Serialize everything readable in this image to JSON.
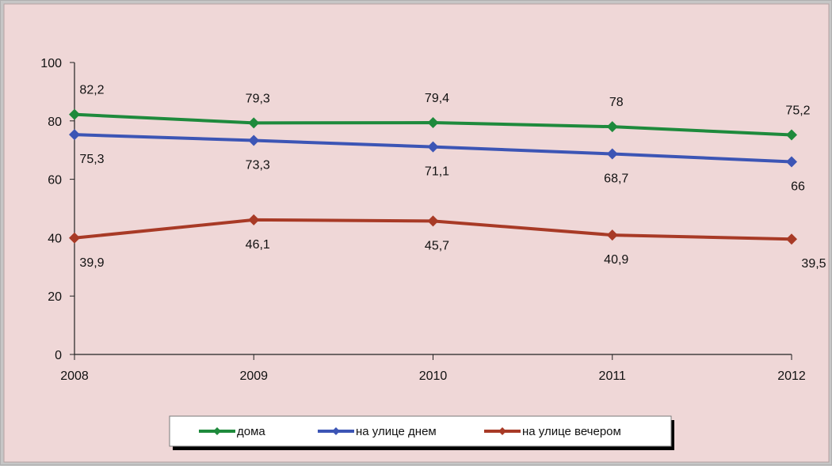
{
  "chart_data": {
    "type": "line",
    "x": [
      2008,
      2009,
      2010,
      2011,
      2012
    ],
    "ylim": [
      0,
      100
    ],
    "yticks": [
      0,
      20,
      40,
      60,
      80,
      100
    ],
    "grid": false,
    "legend_position": "bottom",
    "series": [
      {
        "name": "дома",
        "color": "#1e8a3c",
        "values": [
          82.2,
          79.3,
          79.4,
          78,
          75.2
        ],
        "labels": [
          "82,2",
          "79,3",
          "79,4",
          "78",
          "75,2"
        ],
        "label_position": "above"
      },
      {
        "name": "на улице днем",
        "color": "#3c55b5",
        "values": [
          75.3,
          73.3,
          71.1,
          68.7,
          66
        ],
        "labels": [
          "75,3",
          "73,3",
          "71,1",
          "68,7",
          "66"
        ],
        "label_position": "below"
      },
      {
        "name": "на улице вечером",
        "color": "#a83a26",
        "values": [
          39.9,
          46.1,
          45.7,
          40.9,
          39.5
        ],
        "labels": [
          "39,9",
          "46,1",
          "45,7",
          "40,9",
          "39,5"
        ],
        "label_position": "below"
      }
    ]
  },
  "style": {
    "background": "#efd7d7",
    "outer_background": "#c6c6c6",
    "axis_color": "#222222"
  }
}
